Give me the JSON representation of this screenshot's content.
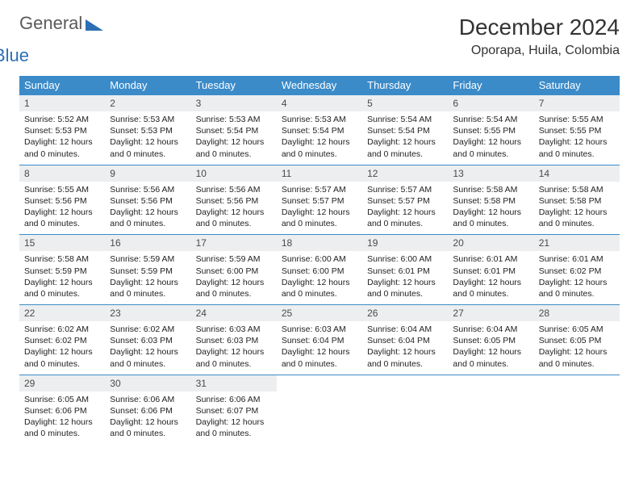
{
  "brand": {
    "part1": "General",
    "part2": "Blue"
  },
  "title": "December 2024",
  "subtitle": "Oporapa, Huila, Colombia",
  "colors": {
    "header_bg": "#3b8bc9",
    "header_text": "#ffffff",
    "daynum_bg": "#eceeef",
    "rule": "#3b8bc9",
    "brand_gray": "#5a5a5a",
    "brand_blue": "#2c6fb5"
  },
  "dow": [
    "Sunday",
    "Monday",
    "Tuesday",
    "Wednesday",
    "Thursday",
    "Friday",
    "Saturday"
  ],
  "label_sunrise": "Sunrise: ",
  "label_sunset": "Sunset: ",
  "label_daylight1": "Daylight: 12 hours",
  "label_daylight2": "and 0 minutes.",
  "weeks": [
    [
      {
        "n": "1",
        "sr": "5:52 AM",
        "ss": "5:53 PM"
      },
      {
        "n": "2",
        "sr": "5:53 AM",
        "ss": "5:53 PM"
      },
      {
        "n": "3",
        "sr": "5:53 AM",
        "ss": "5:54 PM"
      },
      {
        "n": "4",
        "sr": "5:53 AM",
        "ss": "5:54 PM"
      },
      {
        "n": "5",
        "sr": "5:54 AM",
        "ss": "5:54 PM"
      },
      {
        "n": "6",
        "sr": "5:54 AM",
        "ss": "5:55 PM"
      },
      {
        "n": "7",
        "sr": "5:55 AM",
        "ss": "5:55 PM"
      }
    ],
    [
      {
        "n": "8",
        "sr": "5:55 AM",
        "ss": "5:56 PM"
      },
      {
        "n": "9",
        "sr": "5:56 AM",
        "ss": "5:56 PM"
      },
      {
        "n": "10",
        "sr": "5:56 AM",
        "ss": "5:56 PM"
      },
      {
        "n": "11",
        "sr": "5:57 AM",
        "ss": "5:57 PM"
      },
      {
        "n": "12",
        "sr": "5:57 AM",
        "ss": "5:57 PM"
      },
      {
        "n": "13",
        "sr": "5:58 AM",
        "ss": "5:58 PM"
      },
      {
        "n": "14",
        "sr": "5:58 AM",
        "ss": "5:58 PM"
      }
    ],
    [
      {
        "n": "15",
        "sr": "5:58 AM",
        "ss": "5:59 PM"
      },
      {
        "n": "16",
        "sr": "5:59 AM",
        "ss": "5:59 PM"
      },
      {
        "n": "17",
        "sr": "5:59 AM",
        "ss": "6:00 PM"
      },
      {
        "n": "18",
        "sr": "6:00 AM",
        "ss": "6:00 PM"
      },
      {
        "n": "19",
        "sr": "6:00 AM",
        "ss": "6:01 PM"
      },
      {
        "n": "20",
        "sr": "6:01 AM",
        "ss": "6:01 PM"
      },
      {
        "n": "21",
        "sr": "6:01 AM",
        "ss": "6:02 PM"
      }
    ],
    [
      {
        "n": "22",
        "sr": "6:02 AM",
        "ss": "6:02 PM"
      },
      {
        "n": "23",
        "sr": "6:02 AM",
        "ss": "6:03 PM"
      },
      {
        "n": "24",
        "sr": "6:03 AM",
        "ss": "6:03 PM"
      },
      {
        "n": "25",
        "sr": "6:03 AM",
        "ss": "6:04 PM"
      },
      {
        "n": "26",
        "sr": "6:04 AM",
        "ss": "6:04 PM"
      },
      {
        "n": "27",
        "sr": "6:04 AM",
        "ss": "6:05 PM"
      },
      {
        "n": "28",
        "sr": "6:05 AM",
        "ss": "6:05 PM"
      }
    ],
    [
      {
        "n": "29",
        "sr": "6:05 AM",
        "ss": "6:06 PM"
      },
      {
        "n": "30",
        "sr": "6:06 AM",
        "ss": "6:06 PM"
      },
      {
        "n": "31",
        "sr": "6:06 AM",
        "ss": "6:07 PM"
      },
      null,
      null,
      null,
      null
    ]
  ]
}
